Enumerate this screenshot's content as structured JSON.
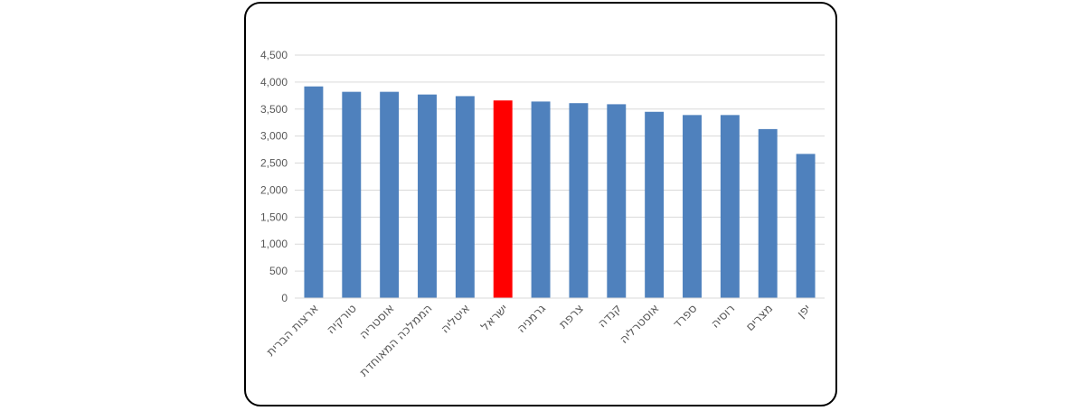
{
  "chart_data": {
    "type": "bar",
    "categories": [
      "ארצות הברית",
      "טורקיה",
      "אוסטריה",
      "הממלכה המאוחדת",
      "איטליה",
      "ישראל",
      "גרמניה",
      "צרפת",
      "קנדה",
      "אוסטרליה",
      "ספרד",
      "רוסיה",
      "מצרים",
      "יפן"
    ],
    "values": [
      3920,
      3820,
      3820,
      3770,
      3740,
      3660,
      3640,
      3610,
      3590,
      3450,
      3390,
      3390,
      3130,
      2670
    ],
    "highlight_index": 5,
    "ylim": [
      0,
      4500
    ],
    "yticks": [
      0,
      500,
      1000,
      1500,
      2000,
      2500,
      3000,
      3500,
      4000,
      4500
    ],
    "ytick_labels": [
      "0",
      "500",
      "1,000",
      "1,500",
      "2,000",
      "2,500",
      "3,000",
      "3,500",
      "4,000",
      "4,500"
    ],
    "grid": true,
    "title": "",
    "xlabel": "",
    "ylabel": "",
    "colors": {
      "bar": "#4F81BD",
      "highlight": "#FF0000",
      "grid": "#D9D9D9",
      "text": "#595959"
    }
  }
}
